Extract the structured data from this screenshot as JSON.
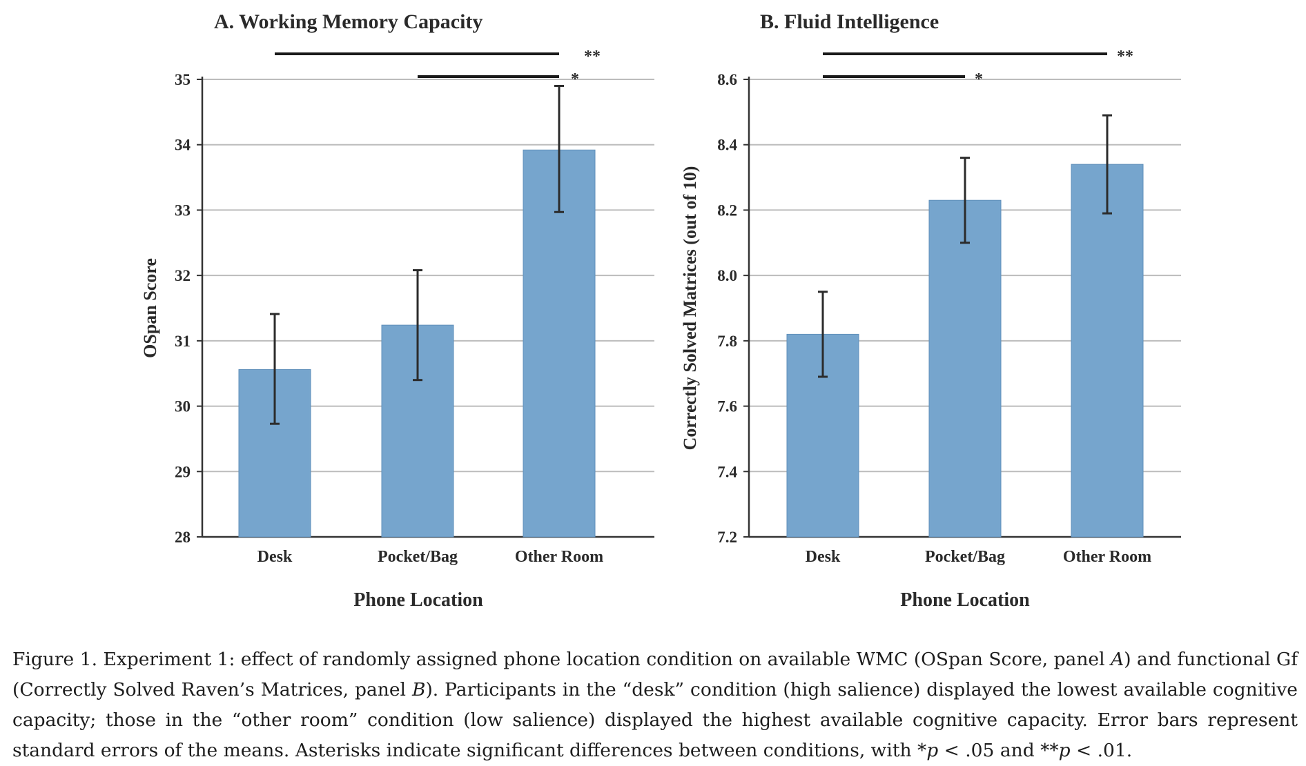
{
  "colors": {
    "bar": "#76a5cd",
    "bar_edge": "#5f8fba",
    "grid": "#bcbcbc",
    "axis": "#333333",
    "sig_line": "#1a1a1a"
  },
  "chart_data": [
    {
      "type": "bar",
      "title": "A. Working Memory Capacity",
      "xlabel": "Phone Location",
      "ylabel": "OSpan Score",
      "categories": [
        "Desk",
        "Pocket/Bag",
        "Other Room"
      ],
      "values": [
        30.56,
        31.24,
        33.92
      ],
      "error_low": [
        29.73,
        30.4,
        32.97
      ],
      "error_high": [
        31.41,
        32.08,
        34.9
      ],
      "ylim": [
        28,
        35
      ],
      "yticks": [
        "28",
        "29",
        "30",
        "31",
        "32",
        "33",
        "34",
        "35"
      ],
      "grid": true,
      "significance": [
        {
          "from": "Desk",
          "to": "Other Room",
          "label": "**"
        },
        {
          "from": "Pocket/Bag",
          "to": "Other Room",
          "label": "*"
        }
      ]
    },
    {
      "type": "bar",
      "title": "B. Fluid Intelligence",
      "xlabel": "Phone Location",
      "ylabel": "Correctly Solved Matrices (out of 10)",
      "categories": [
        "Desk",
        "Pocket/Bag",
        "Other Room"
      ],
      "values": [
        7.82,
        8.23,
        8.34
      ],
      "error_low": [
        7.69,
        8.1,
        8.19
      ],
      "error_high": [
        7.95,
        8.36,
        8.49
      ],
      "ylim": [
        7.2,
        8.6
      ],
      "yticks": [
        "7.2",
        "7.4",
        "7.6",
        "7.8",
        "8.0",
        "8.2",
        "8.4",
        "8.6"
      ],
      "grid": true,
      "significance": [
        {
          "from": "Desk",
          "to": "Other Room",
          "label": "**"
        },
        {
          "from": "Desk",
          "to": "Pocket/Bag",
          "label": "*"
        }
      ]
    }
  ],
  "caption": {
    "p1": "Figure 1. Experiment 1: effect of randomly assigned phone location condition on available WMC (OSpan Score, panel ",
    "panel_a": "A",
    "p2": ") and functional Gf (Correctly Solved Raven’s Matrices, panel ",
    "panel_b": "B",
    "p3": "). Participants in the “desk” condition (high salience) displayed the lowest available cognitive capacity; those in the “other room” condition (low salience) displayed the highest available cognitive capacity. Error bars represent standard errors of the means. Asterisks indicate significant differences between conditions, with *",
    "p_symbol_1": "p",
    "p4": " < .05 and **",
    "p_symbol_2": "p",
    "p5": " < .01."
  }
}
